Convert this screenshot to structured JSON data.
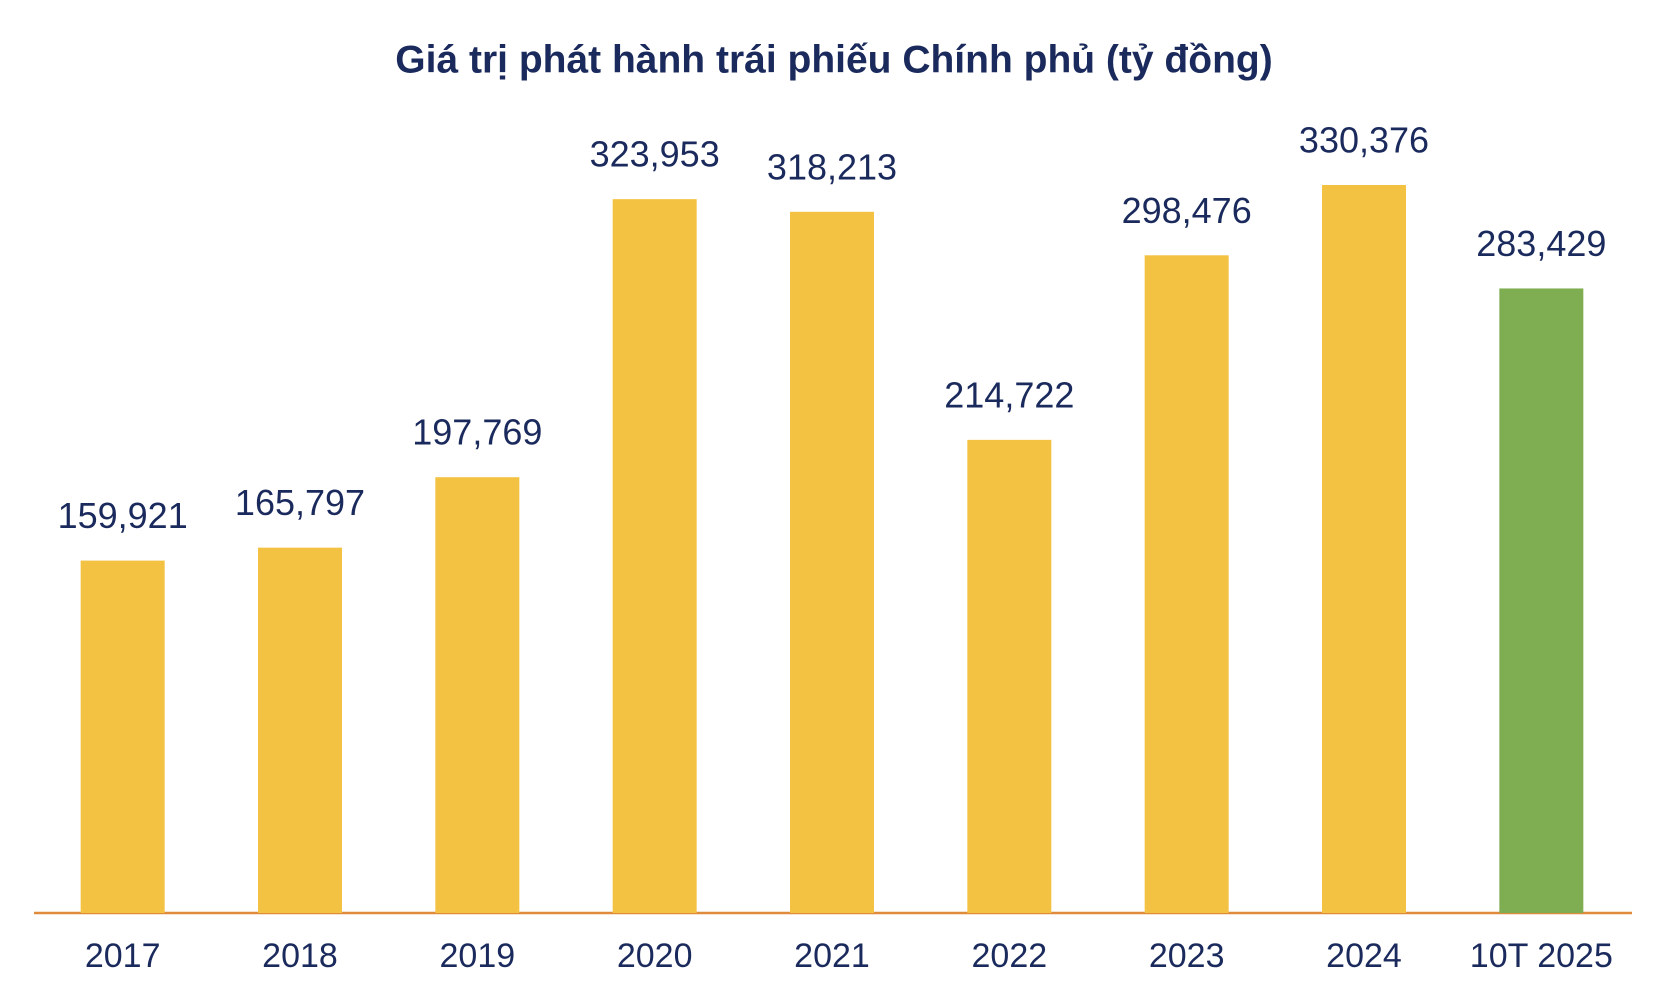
{
  "chart_data": {
    "type": "bar",
    "title": "Giá trị phát hành trái phiếu Chính phủ (tỷ đồng)",
    "categories": [
      "2017",
      "2018",
      "2019",
      "2020",
      "2021",
      "2022",
      "2023",
      "2024",
      "10T 2025"
    ],
    "values": [
      159921,
      165797,
      197769,
      323953,
      318213,
      214722,
      298476,
      330376,
      283429
    ],
    "value_labels": [
      "159,921",
      "165,797",
      "197,769",
      "323,953",
      "318,213",
      "214,722",
      "298,476",
      "330,376",
      "283,429"
    ],
    "colors": [
      "#f4c242",
      "#f4c242",
      "#f4c242",
      "#f4c242",
      "#f4c242",
      "#f4c242",
      "#f4c242",
      "#f4c242",
      "#7fad52"
    ]
  }
}
